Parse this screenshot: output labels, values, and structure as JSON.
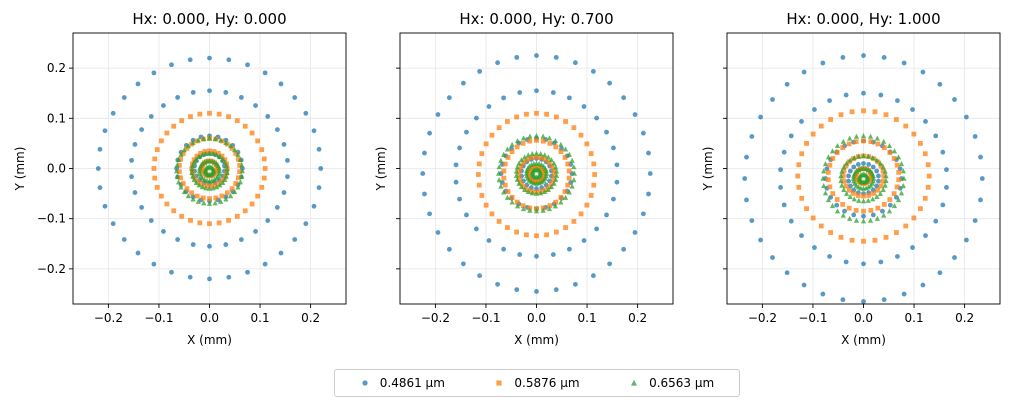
{
  "chart_data": {
    "type": "scatter",
    "legend": {
      "placement": "bottom-center",
      "entries": [
        {
          "name": "0.4861 µm",
          "color": "#1f77b4",
          "marker": "circle"
        },
        {
          "name": "0.5876 µm",
          "color": "#ff7f0e",
          "marker": "square"
        },
        {
          "name": "0.6563 µm",
          "color": "#2ca02c",
          "marker": "triangle"
        }
      ]
    },
    "shared_y": true,
    "grid": true,
    "panels": [
      {
        "title": "Hx: 0.000, Hy: 0.000",
        "xlabel": "X (mm)",
        "ylabel": "Y (mm)",
        "xlim": [
          -0.27,
          0.27
        ],
        "ylim": [
          -0.27,
          0.27
        ],
        "xticks": [
          "−0.2",
          "−0.1",
          "0.0",
          "0.1",
          "0.2"
        ],
        "yticks": [
          "−0.2",
          "−0.1",
          "0.0",
          "0.1",
          "0.2"
        ],
        "series": [
          {
            "name": "0.4861 µm",
            "center": [
              0.0,
              0.0
            ],
            "rings": [
              {
                "rx": 0.22,
                "ry": 0.22,
                "n": 36
              },
              {
                "rx": 0.155,
                "ry": 0.155,
                "n": 30
              },
              {
                "rx": 0.065,
                "ry": 0.065,
                "n": 24
              },
              {
                "rx": 0.03,
                "ry": 0.03,
                "n": 18
              }
            ]
          },
          {
            "name": "0.5876 µm",
            "center": [
              0.0,
              0.0
            ],
            "rings": [
              {
                "rx": 0.11,
                "ry": 0.11,
                "n": 36
              },
              {
                "rx": 0.06,
                "ry": 0.06,
                "n": 30
              },
              {
                "rx": 0.035,
                "ry": 0.035,
                "n": 24
              },
              {
                "rx": 0.015,
                "ry": 0.015,
                "n": 18
              }
            ]
          },
          {
            "name": "0.6563 µm",
            "center": [
              0.0,
              -0.005
            ],
            "rings": [
              {
                "rx": 0.065,
                "ry": 0.065,
                "n": 36
              },
              {
                "rx": 0.035,
                "ry": 0.035,
                "n": 30
              },
              {
                "rx": 0.02,
                "ry": 0.02,
                "n": 24
              },
              {
                "rx": 0.008,
                "ry": 0.008,
                "n": 18
              }
            ]
          }
        ]
      },
      {
        "title": "Hx: 0.000, Hy: 0.700",
        "xlabel": "X (mm)",
        "ylabel": "Y (mm)",
        "xlim": [
          -0.27,
          0.27
        ],
        "ylim": [
          -0.27,
          0.27
        ],
        "xticks": [
          "−0.2",
          "−0.1",
          "0.0",
          "0.1",
          "0.2"
        ],
        "yticks": [],
        "series": [
          {
            "name": "0.4861 µm",
            "center": [
              0.0,
              -0.01
            ],
            "rings": [
              {
                "rx": 0.225,
                "ry": 0.235,
                "n": 36
              },
              {
                "rx": 0.16,
                "ry": 0.165,
                "n": 30
              },
              {
                "rx": 0.07,
                "ry": 0.07,
                "n": 24
              },
              {
                "rx": 0.03,
                "ry": 0.03,
                "n": 18
              }
            ]
          },
          {
            "name": "0.5876 µm",
            "center": [
              0.0,
              -0.012
            ],
            "rings": [
              {
                "rx": 0.115,
                "ry": 0.122,
                "n": 36
              },
              {
                "rx": 0.065,
                "ry": 0.068,
                "n": 30
              },
              {
                "rx": 0.035,
                "ry": 0.035,
                "n": 24
              },
              {
                "rx": 0.015,
                "ry": 0.015,
                "n": 18
              }
            ]
          },
          {
            "name": "0.6563 µm",
            "center": [
              0.0,
              -0.01
            ],
            "rings": [
              {
                "rx": 0.075,
                "ry": 0.075,
                "n": 36
              },
              {
                "rx": 0.04,
                "ry": 0.04,
                "n": 30
              },
              {
                "rx": 0.02,
                "ry": 0.02,
                "n": 24
              },
              {
                "rx": 0.008,
                "ry": 0.008,
                "n": 18
              }
            ]
          }
        ]
      },
      {
        "title": "Hx: 0.000, Hy: 1.000",
        "xlabel": "X (mm)",
        "ylabel": "Y (mm)",
        "xlim": [
          -0.27,
          0.27
        ],
        "ylim": [
          -0.27,
          0.27
        ],
        "xticks": [
          "−0.2",
          "−0.1",
          "0.0",
          "0.1",
          "0.2"
        ],
        "yticks": [],
        "series": [
          {
            "name": "0.4861 µm",
            "center": [
              0.0,
              -0.02
            ],
            "rings": [
              {
                "rx": 0.235,
                "ry": 0.245,
                "n": 36
              },
              {
                "rx": 0.165,
                "ry": 0.17,
                "n": 30
              },
              {
                "rx": 0.075,
                "ry": 0.075,
                "n": 24
              },
              {
                "rx": 0.03,
                "ry": 0.03,
                "n": 18
              }
            ]
          },
          {
            "name": "0.5876 µm",
            "center": [
              0.0,
              -0.015
            ],
            "rings": [
              {
                "rx": 0.13,
                "ry": 0.13,
                "n": 36
              },
              {
                "rx": 0.07,
                "ry": 0.07,
                "n": 30
              },
              {
                "rx": 0.04,
                "ry": 0.04,
                "n": 24
              },
              {
                "rx": 0.015,
                "ry": 0.015,
                "n": 18
              }
            ]
          },
          {
            "name": "0.6563 µm",
            "center": [
              0.0,
              -0.02
            ],
            "rings": [
              {
                "rx": 0.08,
                "ry": 0.085,
                "n": 36
              },
              {
                "rx": 0.045,
                "ry": 0.045,
                "n": 30
              },
              {
                "rx": 0.02,
                "ry": 0.02,
                "n": 24
              },
              {
                "rx": 0.008,
                "ry": 0.008,
                "n": 18
              }
            ]
          }
        ]
      }
    ]
  }
}
